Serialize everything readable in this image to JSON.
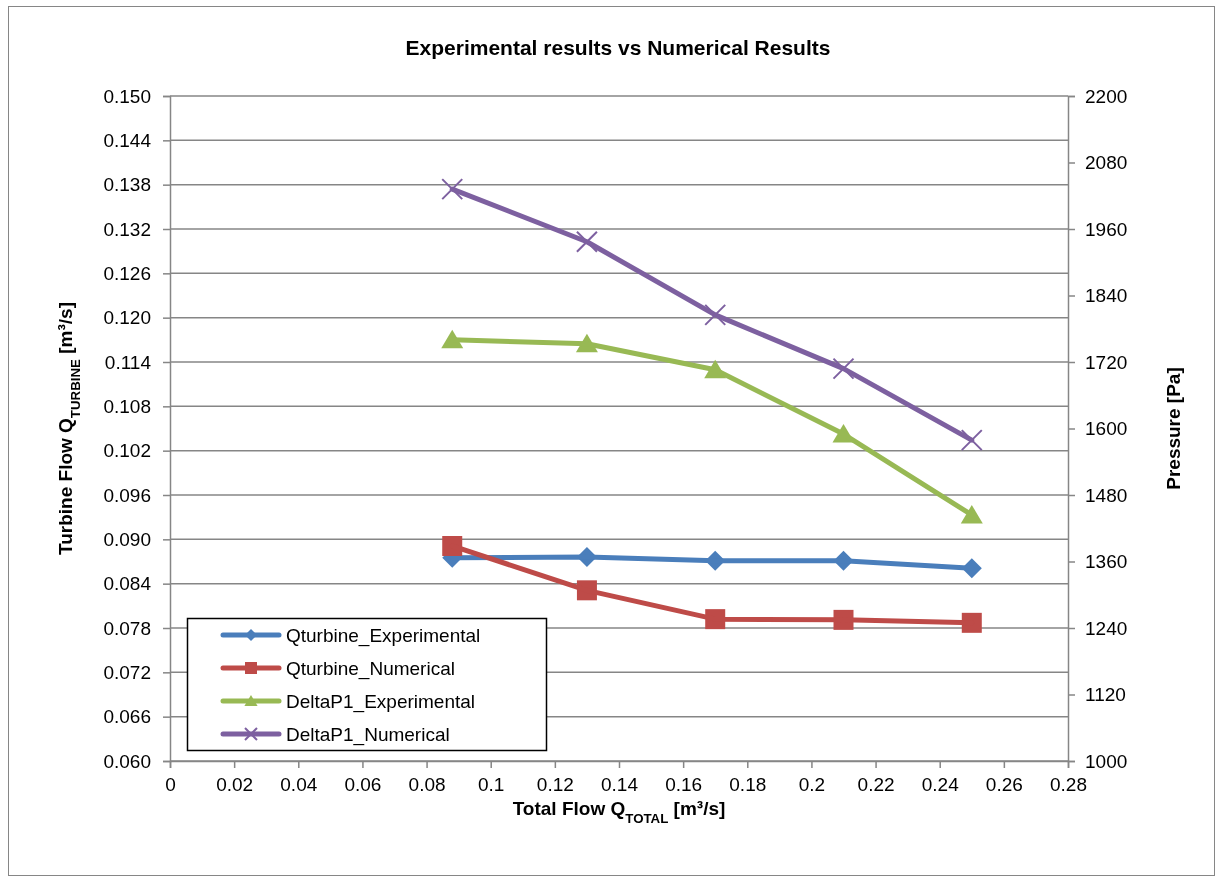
{
  "chart_data": {
    "type": "line",
    "title": "Experimental results vs Numerical Results",
    "xlabel": "Total Flow Q$_{TOTAL}$ [m³/s]",
    "ylabel": "Turbine Flow Q$_{TURBINE}$ [m³/s]",
    "y2label": "Pressure [Pa]",
    "x": [
      0.088,
      0.13,
      0.17,
      0.21,
      0.25
    ],
    "series": [
      {
        "name": "Qturbine_Experimental",
        "color": "#4a7ebb",
        "marker": "diamond",
        "values": [
          0.0875,
          0.0876,
          0.0871,
          0.0871,
          0.0861
        ]
      },
      {
        "name": "Qturbine_Numerical",
        "color": "#be4b48",
        "marker": "square",
        "values": [
          0.0891,
          0.0831,
          0.0792,
          0.0791,
          0.0787
        ]
      },
      {
        "name": "DeltaP1_Experimental",
        "color": "#98b954",
        "marker": "triangle",
        "axis": "y2",
        "values": [
          1760,
          1753,
          1706,
          1590,
          1444
        ]
      },
      {
        "name": "DeltaP1_Numerical",
        "color": "#7d60a0",
        "marker": "cross",
        "axis": "y2",
        "values": [
          2032,
          1937,
          1805,
          1708,
          1579
        ]
      }
    ],
    "xlim": [
      0,
      0.28
    ],
    "xticks": [
      0,
      0.02,
      0.04,
      0.06,
      0.08,
      0.1,
      0.12,
      0.14,
      0.16,
      0.18,
      0.2,
      0.22,
      0.24,
      0.26,
      0.28
    ],
    "ylim": [
      0.06,
      0.15
    ],
    "yticks": [
      {
        "value": 0.06,
        "label": "0.060"
      },
      0.066,
      0.072,
      0.078,
      0.084,
      {
        "value": 0.09,
        "label": "0.090"
      },
      0.096,
      0.102,
      0.108,
      0.114,
      {
        "value": 0.12,
        "label": "0.120"
      },
      0.126,
      0.132,
      0.138,
      0.144,
      {
        "value": 0.15,
        "label": "0.150"
      }
    ],
    "y2lim": [
      1000,
      2200
    ],
    "y2ticks": [
      1000,
      1120,
      1240,
      1360,
      1480,
      1600,
      1720,
      1840,
      1960,
      2080,
      2200
    ],
    "grid": "y",
    "legend": "bottom left",
    "line_style": "solid"
  }
}
